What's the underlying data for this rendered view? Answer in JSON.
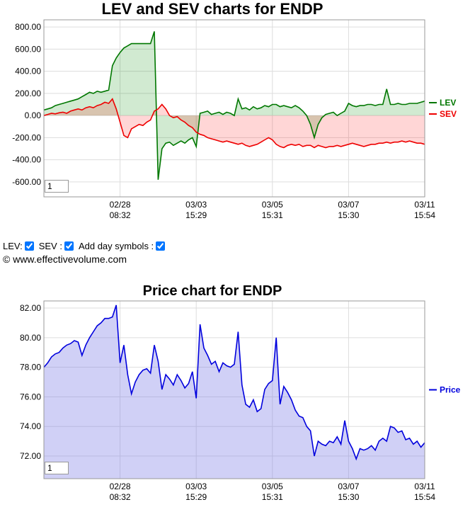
{
  "chart_data": [
    {
      "type": "line",
      "title": "LEV and SEV charts for ENDP",
      "x": [
        0,
        1,
        2,
        3,
        4,
        5,
        6,
        7,
        8,
        9,
        10,
        11,
        12,
        13,
        14,
        15,
        16,
        17,
        18,
        19,
        20,
        21,
        22,
        23,
        24,
        25,
        26,
        27,
        28,
        29,
        30,
        31,
        32,
        33,
        34,
        35,
        36,
        37,
        38,
        39,
        40,
        41,
        42,
        43,
        44,
        45,
        46,
        47,
        48,
        49,
        50,
        51,
        52,
        53,
        54,
        55,
        56,
        57,
        58,
        59,
        60,
        61,
        62,
        63,
        64,
        65,
        66,
        67,
        68,
        69,
        70,
        71,
        72,
        73,
        74,
        75,
        76,
        77,
        78,
        79,
        80,
        81,
        82,
        83,
        84,
        85,
        86,
        87,
        88,
        89,
        90,
        91,
        92,
        93,
        94,
        95,
        96,
        97,
        98,
        99,
        100
      ],
      "series": [
        {
          "name": "LEV",
          "color": "#007700",
          "fill": "rgba(0,140,0,0.18)",
          "values": [
            50,
            60,
            70,
            90,
            100,
            110,
            120,
            130,
            140,
            150,
            170,
            190,
            210,
            200,
            220,
            210,
            220,
            230,
            450,
            520,
            570,
            610,
            630,
            650,
            650,
            650,
            650,
            650,
            650,
            760,
            -580,
            -300,
            -250,
            -240,
            -270,
            -250,
            -230,
            -250,
            -220,
            -200,
            -280,
            20,
            30,
            40,
            10,
            20,
            30,
            10,
            30,
            20,
            0,
            150,
            60,
            70,
            50,
            80,
            60,
            70,
            90,
            80,
            100,
            100,
            80,
            90,
            80,
            70,
            90,
            70,
            40,
            0,
            -80,
            -200,
            -80,
            -20,
            10,
            20,
            30,
            0,
            20,
            40,
            110,
            90,
            80,
            90,
            90,
            100,
            100,
            90,
            100,
            100,
            240,
            100,
            100,
            110,
            100,
            100,
            110,
            110,
            110,
            120,
            130
          ]
        },
        {
          "name": "SEV",
          "color": "#ee0000",
          "fill": "rgba(255,0,0,0.16)",
          "values": [
            0,
            10,
            20,
            15,
            25,
            30,
            20,
            40,
            50,
            60,
            50,
            70,
            80,
            70,
            90,
            100,
            120,
            110,
            150,
            60,
            -60,
            -180,
            -200,
            -120,
            -100,
            -80,
            -90,
            -60,
            -40,
            40,
            60,
            100,
            60,
            0,
            -20,
            -10,
            -40,
            -60,
            -90,
            -110,
            -150,
            -170,
            -180,
            -200,
            -210,
            -220,
            -230,
            -240,
            -230,
            -240,
            -250,
            -260,
            -250,
            -270,
            -280,
            -270,
            -260,
            -240,
            -220,
            -200,
            -220,
            -260,
            -280,
            -290,
            -270,
            -260,
            -270,
            -260,
            -280,
            -270,
            -270,
            -290,
            -270,
            -280,
            -290,
            -280,
            -280,
            -270,
            -280,
            -270,
            -260,
            -250,
            -260,
            -270,
            -280,
            -270,
            -260,
            -260,
            -250,
            -250,
            -240,
            -250,
            -240,
            -240,
            -230,
            -240,
            -230,
            -240,
            -250,
            -250,
            -260
          ]
        }
      ],
      "xlim": [
        0,
        100
      ],
      "xticks": [
        {
          "value": 20,
          "label": "02/28 08:32"
        },
        {
          "value": 40,
          "label": "03/03 15:29"
        },
        {
          "value": 60,
          "label": "03/05 15:31"
        },
        {
          "value": 80,
          "label": "03/07 15:30"
        },
        {
          "value": 100,
          "label": "03/11 15:54"
        }
      ],
      "ylim": [
        -735,
        865
      ],
      "yticks": [
        {
          "value": 800,
          "label": "800.00"
        },
        {
          "value": 600,
          "label": "600.00"
        },
        {
          "value": 400,
          "label": "400.00"
        },
        {
          "value": 200,
          "label": "200.00"
        },
        {
          "value": 0,
          "label": "0.00"
        },
        {
          "value": -200,
          "label": "-200.00"
        },
        {
          "value": -400,
          "label": "-400.00"
        },
        {
          "value": -600,
          "label": "-600.00"
        }
      ],
      "grid": true,
      "legend": "right",
      "zoom": "1"
    },
    {
      "type": "line",
      "title": "Price chart for ENDP",
      "x": [
        0,
        1,
        2,
        3,
        4,
        5,
        6,
        7,
        8,
        9,
        10,
        11,
        12,
        13,
        14,
        15,
        16,
        17,
        18,
        19,
        20,
        21,
        22,
        23,
        24,
        25,
        26,
        27,
        28,
        29,
        30,
        31,
        32,
        33,
        34,
        35,
        36,
        37,
        38,
        39,
        40,
        41,
        42,
        43,
        44,
        45,
        46,
        47,
        48,
        49,
        50,
        51,
        52,
        53,
        54,
        55,
        56,
        57,
        58,
        59,
        60,
        61,
        62,
        63,
        64,
        65,
        66,
        67,
        68,
        69,
        70,
        71,
        72,
        73,
        74,
        75,
        76,
        77,
        78,
        79,
        80,
        81,
        82,
        83,
        84,
        85,
        86,
        87,
        88,
        89,
        90,
        91,
        92,
        93,
        94,
        95,
        96,
        97,
        98,
        99,
        100
      ],
      "series": [
        {
          "name": "Price",
          "color": "#0000dd",
          "fill": "rgba(120,120,230,0.35)",
          "values": [
            78.0,
            78.3,
            78.7,
            78.9,
            79.0,
            79.3,
            79.5,
            79.6,
            79.8,
            79.7,
            78.8,
            79.5,
            80.0,
            80.4,
            80.8,
            81.0,
            81.3,
            81.3,
            81.4,
            82.2,
            78.3,
            79.5,
            77.5,
            76.2,
            77.0,
            77.5,
            77.8,
            77.9,
            77.6,
            79.5,
            78.4,
            76.5,
            77.5,
            77.2,
            76.8,
            77.5,
            77.1,
            76.6,
            76.9,
            77.7,
            75.9,
            80.9,
            79.3,
            78.8,
            78.2,
            78.4,
            77.7,
            78.3,
            78.1,
            78.0,
            78.2,
            80.4,
            76.8,
            75.5,
            75.3,
            75.8,
            75.0,
            75.2,
            76.5,
            76.9,
            77.1,
            80.0,
            75.5,
            76.7,
            76.3,
            75.8,
            75.1,
            74.7,
            74.6,
            74.0,
            73.7,
            72.0,
            73.0,
            72.8,
            72.7,
            73.0,
            72.9,
            73.3,
            72.8,
            74.4,
            73.0,
            72.5,
            71.8,
            72.5,
            72.4,
            72.5,
            72.7,
            72.4,
            73.0,
            73.2,
            73.0,
            74.0,
            73.9,
            73.6,
            73.7,
            73.1,
            73.2,
            72.8,
            73.0,
            72.6,
            72.9
          ]
        }
      ],
      "xlim": [
        0,
        100
      ],
      "xticks": [
        {
          "value": 20,
          "label": "02/28 08:32"
        },
        {
          "value": 40,
          "label": "03/03 15:29"
        },
        {
          "value": 60,
          "label": "03/05 15:31"
        },
        {
          "value": 80,
          "label": "03/07 15:30"
        },
        {
          "value": 100,
          "label": "03/11 15:54"
        }
      ],
      "ylim": [
        70.47,
        82.48
      ],
      "yticks": [
        {
          "value": 82,
          "label": "82.00"
        },
        {
          "value": 80,
          "label": "80.00"
        },
        {
          "value": 78,
          "label": "78.00"
        },
        {
          "value": 76,
          "label": "76.00"
        },
        {
          "value": 74,
          "label": "74.00"
        },
        {
          "value": 72,
          "label": "72.00"
        }
      ],
      "grid": true,
      "legend": "right",
      "zoom": "1"
    }
  ],
  "controls": {
    "lev": "LEV:",
    "sev": "SEV :",
    "day": "Add day symbols :"
  },
  "copyright": "© www.effectivevolume.com"
}
